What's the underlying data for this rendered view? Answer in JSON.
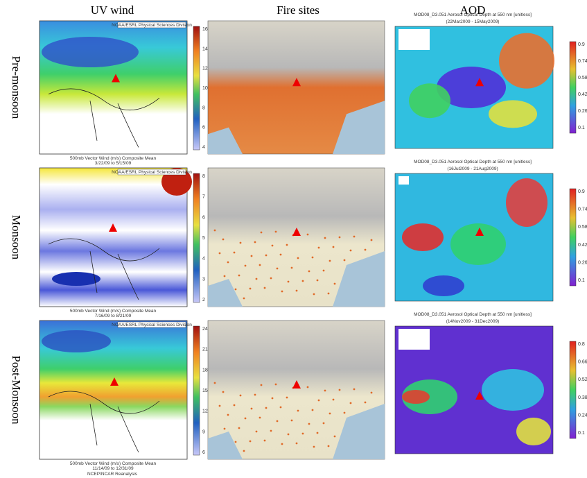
{
  "columns": [
    "UV wind",
    "Fire sites",
    "AOD"
  ],
  "rows": [
    {
      "label": "Pre-monsoon",
      "wind": {
        "caption": "500mb Vector Wind (m/s) Composite Mean",
        "dates": "3/22/09 to 5/15/09",
        "colorbar": [
          "16",
          "14",
          "12",
          "10",
          "8",
          "6",
          "4"
        ]
      },
      "aod": {
        "title": "MOD08_D3.051 Aerosol Optical Depth at 550 nm [unitless]",
        "dates": "(22Mar2009 - 15May2009)",
        "colorbar": [
          "0.9",
          "0.74",
          "0.58",
          "0.42",
          "0.26",
          "0.1"
        ]
      }
    },
    {
      "label": "Monsoon",
      "wind": {
        "caption": "500mb Vector Wind (m/s) Composite Mean",
        "dates": "7/16/09 to 8/21/09",
        "colorbar": [
          "8",
          "7",
          "6",
          "5",
          "4",
          "3",
          "2"
        ]
      },
      "aod": {
        "title": "MOD08_D3.051 Aerosol Optical Depth at 550 nm [unitless]",
        "dates": "(16Jul2009 - 21Aug2009)",
        "colorbar": [
          "0.9",
          "0.74",
          "0.58",
          "0.42",
          "0.26",
          "0.1"
        ]
      }
    },
    {
      "label": "Post-Monsoon",
      "wind": {
        "caption": "500mb Vector Wind (m/s) Composite Mean",
        "dates": "11/14/09 to 12/31/09",
        "colorbar": [
          "24",
          "21",
          "18",
          "15",
          "12",
          "9",
          "6"
        ]
      },
      "aod": {
        "title": "MOD08_D3.051 Aerosol Optical Depth at 550 nm [unitless]",
        "dates": "(14Nov2009 - 31Dec2009)",
        "colorbar": [
          "0.8",
          "0.66",
          "0.52",
          "0.38",
          "0.24",
          "0.1"
        ]
      }
    }
  ],
  "credit": "NOAA/ESRL Physical Sciences Division",
  "footer": "NCEP/NCAR Reanalysis"
}
